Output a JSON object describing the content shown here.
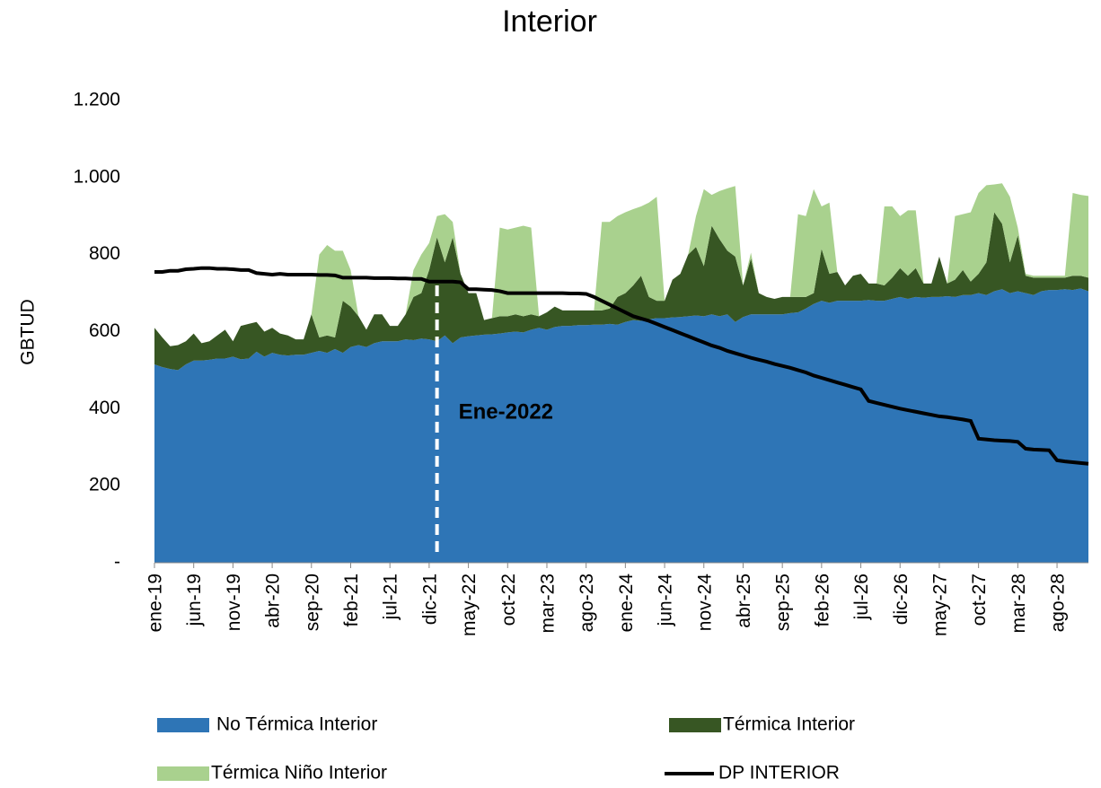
{
  "chart_data": {
    "type": "area",
    "title": "Interior",
    "y_label": "GBTUD",
    "categories": [
      "ene-19",
      null,
      null,
      null,
      null,
      "jun-19",
      null,
      null,
      null,
      null,
      "nov-19",
      null,
      null,
      null,
      null,
      "abr-20",
      null,
      null,
      null,
      null,
      "sep-20",
      null,
      null,
      null,
      null,
      "feb-21",
      null,
      null,
      null,
      null,
      "jul-21",
      null,
      null,
      null,
      null,
      "dic-21",
      null,
      null,
      null,
      null,
      "may-22",
      null,
      null,
      null,
      null,
      "oct-22",
      null,
      null,
      null,
      null,
      "mar-23",
      null,
      null,
      null,
      null,
      "ago-23",
      null,
      null,
      null,
      null,
      "ene-24",
      null,
      null,
      null,
      null,
      "jun-24",
      null,
      null,
      null,
      null,
      "nov-24",
      null,
      null,
      null,
      null,
      "abr-25",
      null,
      null,
      null,
      null,
      "sep-25",
      null,
      null,
      null,
      null,
      "feb-26",
      null,
      null,
      null,
      null,
      "jul-26",
      null,
      null,
      null,
      null,
      "dic-26",
      null,
      null,
      null,
      null,
      "may-27",
      null,
      null,
      null,
      null,
      "oct-27",
      null,
      null,
      null,
      null,
      "mar-28",
      null,
      null,
      null,
      null,
      "ago-28",
      null,
      null,
      null,
      null
    ],
    "series": [
      {
        "name": "No Térmica Interior",
        "type": "area",
        "color": "#2e75b6",
        "values": [
          515,
          508,
          503,
          500,
          515,
          525,
          525,
          527,
          530,
          530,
          535,
          528,
          530,
          548,
          535,
          545,
          540,
          538,
          540,
          540,
          545,
          550,
          545,
          555,
          545,
          560,
          565,
          560,
          570,
          575,
          575,
          575,
          580,
          578,
          582,
          580,
          575,
          590,
          570,
          585,
          588,
          590,
          592,
          593,
          595,
          598,
          600,
          598,
          605,
          610,
          605,
          612,
          615,
          615,
          617,
          617,
          618,
          618,
          620,
          618,
          625,
          630,
          628,
          632,
          635,
          635,
          637,
          638,
          640,
          642,
          640,
          645,
          640,
          645,
          625,
          638,
          645,
          645,
          645,
          645,
          645,
          648,
          650,
          660,
          672,
          680,
          675,
          680,
          680,
          680,
          680,
          682,
          680,
          680,
          685,
          690,
          685,
          690,
          688,
          690,
          690,
          692,
          690,
          695,
          695,
          700,
          695,
          705,
          710,
          700,
          705,
          700,
          695,
          705,
          708,
          708,
          710,
          708,
          712,
          705
        ]
      },
      {
        "name": "Térmica Interior",
        "type": "area",
        "color": "#375623",
        "values": [
          95,
          77,
          59,
          65,
          60,
          70,
          45,
          48,
          60,
          75,
          40,
          87,
          90,
          77,
          65,
          65,
          55,
          52,
          40,
          40,
          100,
          35,
          45,
          30,
          135,
          105,
          75,
          45,
          75,
          70,
          40,
          40,
          65,
          112,
          118,
          180,
          270,
          190,
          275,
          165,
          112,
          110,
          38,
          42,
          45,
          42,
          45,
          42,
          40,
          30,
          45,
          53,
          40,
          40,
          38,
          38,
          37,
          37,
          40,
          72,
          75,
          90,
          117,
          58,
          45,
          45,
          98,
          112,
          160,
          178,
          130,
          230,
          200,
          165,
          170,
          82,
          145,
          55,
          45,
          40,
          45,
          42,
          40,
          30,
          28,
          135,
          75,
          75,
          40,
          65,
          70,
          43,
          45,
          40,
          55,
          75,
          60,
          75,
          37,
          35,
          105,
          33,
          45,
          65,
          35,
          50,
          85,
          205,
          170,
          80,
          145,
          45,
          45,
          35,
          32,
          32,
          30,
          37,
          33,
          35
        ]
      },
      {
        "name": "Térmica Niño Interior",
        "type": "area",
        "color": "#a9d18e",
        "values": [
          0,
          0,
          0,
          0,
          0,
          0,
          0,
          0,
          0,
          0,
          0,
          0,
          0,
          0,
          0,
          0,
          0,
          0,
          0,
          0,
          0,
          215,
          235,
          225,
          130,
          95,
          0,
          0,
          0,
          0,
          0,
          0,
          0,
          70,
          100,
          70,
          55,
          125,
          40,
          0,
          0,
          0,
          0,
          0,
          230,
          225,
          225,
          235,
          225,
          0,
          0,
          0,
          0,
          0,
          0,
          0,
          0,
          230,
          225,
          210,
          210,
          198,
          180,
          245,
          270,
          0,
          0,
          0,
          0,
          80,
          200,
          80,
          125,
          162,
          183,
          0,
          15,
          0,
          0,
          0,
          0,
          0,
          215,
          210,
          270,
          110,
          185,
          0,
          0,
          0,
          0,
          0,
          0,
          205,
          185,
          135,
          170,
          150,
          0,
          0,
          0,
          0,
          165,
          145,
          180,
          210,
          200,
          72,
          105,
          170,
          20,
          5,
          5,
          5,
          5,
          5,
          5,
          215,
          210,
          212
        ]
      },
      {
        "name": "DP INTERIOR",
        "type": "line",
        "color": "#000000",
        "values": [
          755,
          755,
          758,
          758,
          762,
          763,
          765,
          765,
          763,
          763,
          762,
          760,
          760,
          752,
          750,
          748,
          750,
          748,
          748,
          748,
          748,
          747,
          747,
          746,
          740,
          740,
          740,
          740,
          739,
          739,
          739,
          738,
          738,
          737,
          737,
          730,
          730,
          730,
          730,
          728,
          710,
          710,
          709,
          708,
          705,
          700,
          700,
          700,
          700,
          700,
          700,
          700,
          700,
          699,
          699,
          698,
          690,
          680,
          670,
          660,
          650,
          640,
          634,
          628,
          620,
          612,
          604,
          596,
          588,
          580,
          572,
          564,
          558,
          550,
          544,
          538,
          532,
          527,
          522,
          516,
          511,
          506,
          500,
          494,
          486,
          480,
          474,
          468,
          462,
          456,
          450,
          420,
          415,
          410,
          405,
          400,
          396,
          392,
          388,
          384,
          380,
          378,
          375,
          372,
          368,
          322,
          320,
          318,
          317,
          316,
          314,
          296,
          294,
          293,
          292,
          266,
          263,
          261,
          259,
          257
        ]
      }
    ],
    "ylim": [
      0,
      1200
    ],
    "yticks": [
      {
        "value": 0,
        "label": "-"
      },
      200,
      400,
      600,
      800,
      {
        "value": 1000,
        "label": "1.000"
      },
      {
        "value": 1200,
        "label": "1.200"
      }
    ],
    "annotation": {
      "text": "Ene-2022",
      "category_index": 36,
      "color": "#ffffff"
    }
  }
}
